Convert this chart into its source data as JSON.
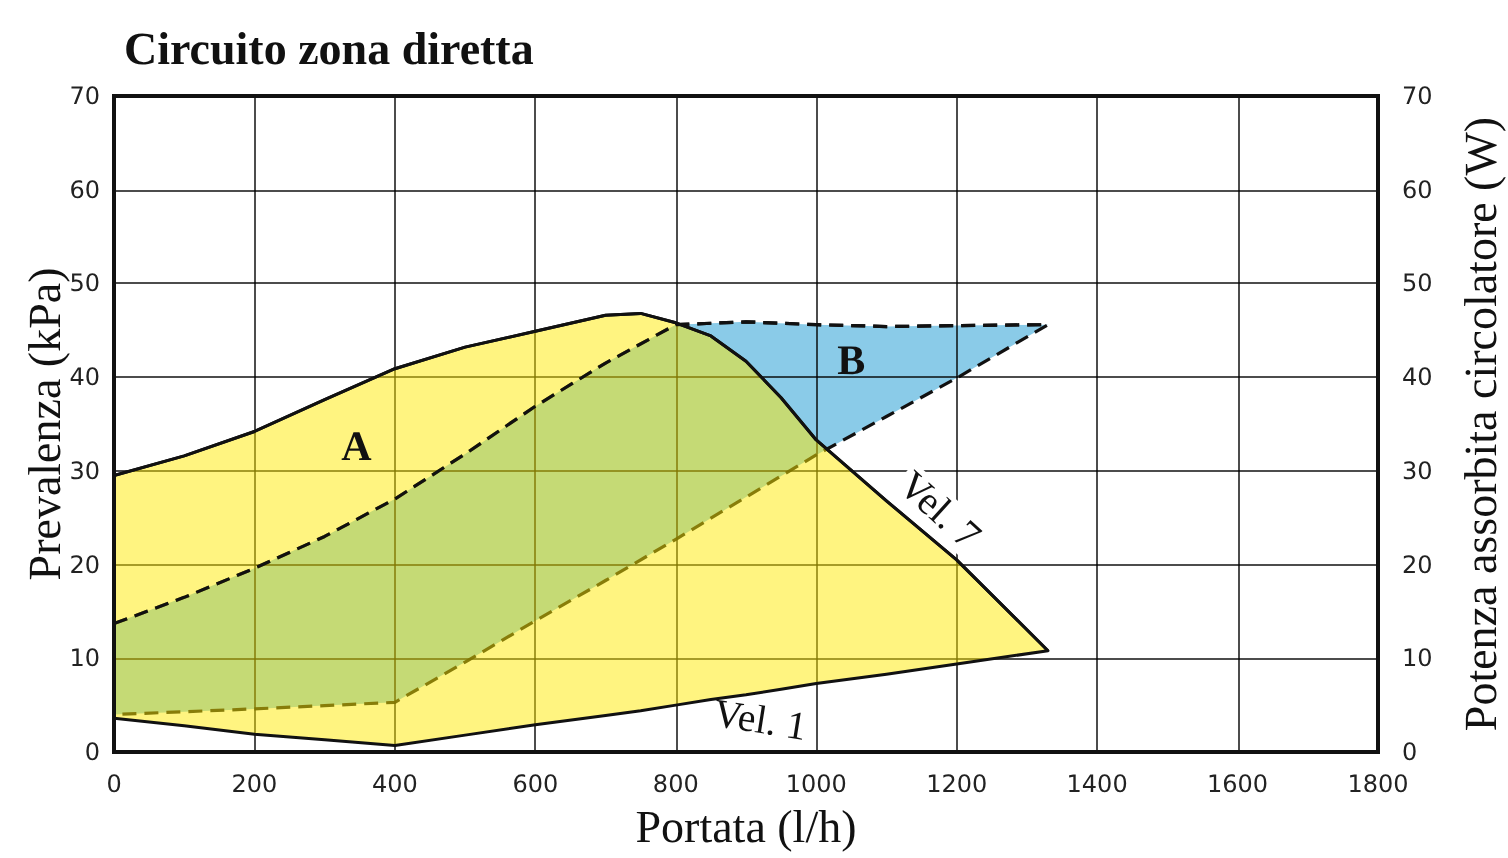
{
  "chart_data": {
    "type": "line",
    "title": "Circuito zona diretta",
    "xlabel": "Portata (l/h)",
    "ylabel": "Prevalenza (kPa)",
    "y2label": "Potenza assorbita circolatore (W)",
    "xlim": [
      0,
      1800
    ],
    "xticks": [
      0,
      200,
      400,
      600,
      800,
      1000,
      1200,
      1400,
      1600,
      1800
    ],
    "ylim": [
      0,
      70
    ],
    "yticks": [
      0,
      10,
      20,
      30,
      40,
      50,
      60,
      70
    ],
    "y2lim": [
      0,
      70
    ],
    "y2ticks": [
      0,
      10,
      20,
      30,
      40,
      50,
      60,
      70
    ],
    "grid": true,
    "series": [
      {
        "name": "B",
        "color": "#111111",
        "line_style": "dashed",
        "axis": "y2",
        "x": [
          0,
          100,
          200,
          300,
          400,
          500,
          600,
          700,
          800,
          900,
          1000,
          1100,
          1200,
          1330
        ],
        "values": [
          13.7,
          16.5,
          19.6,
          23.0,
          27.0,
          31.8,
          36.9,
          41.5,
          45.6,
          45.9,
          45.6,
          45.4,
          45.5,
          45.6
        ],
        "upper": [
          13.7,
          16.5,
          19.6,
          23.0,
          27.0,
          31.8,
          36.9,
          41.5,
          45.6,
          45.9,
          45.6,
          45.4,
          45.5,
          45.6
        ],
        "lower": [
          4.0,
          4.3,
          4.6,
          4.95,
          5.3,
          9.6,
          14.0,
          18.3,
          22.7,
          27.2,
          31.7,
          35.8,
          39.9,
          45.6
        ]
      },
      {
        "name": "A",
        "color": "#111111",
        "line_style": "solid",
        "x": [
          0,
          100,
          200,
          300,
          400,
          500,
          600,
          700,
          750,
          800,
          850,
          900,
          950,
          1000,
          1100,
          1200,
          1330
        ],
        "values": [
          29.5,
          31.6,
          34.2,
          37.6,
          40.9,
          43.2,
          44.9,
          46.6,
          46.8,
          45.8,
          44.4,
          41.7,
          37.8,
          33.3,
          26.8,
          20.5,
          10.8
        ],
        "upper": [
          29.5,
          31.6,
          34.2,
          37.6,
          40.9,
          43.2,
          44.9,
          46.6,
          46.8,
          45.8,
          44.4,
          41.7,
          37.8,
          33.3,
          26.8,
          20.5,
          10.8
        ],
        "lower": [
          3.6,
          2.8,
          1.9,
          1.3,
          0.7,
          1.8,
          2.9,
          3.9,
          4.4,
          5.0,
          5.6,
          6.1,
          6.7,
          7.3,
          8.3,
          9.4,
          10.8
        ]
      }
    ],
    "annotations": [
      {
        "text": "Vel. 7",
        "x": 1175,
        "y": 22.1
      },
      {
        "text": "Vel. 1",
        "x": 920,
        "y": 6.3
      }
    ]
  }
}
